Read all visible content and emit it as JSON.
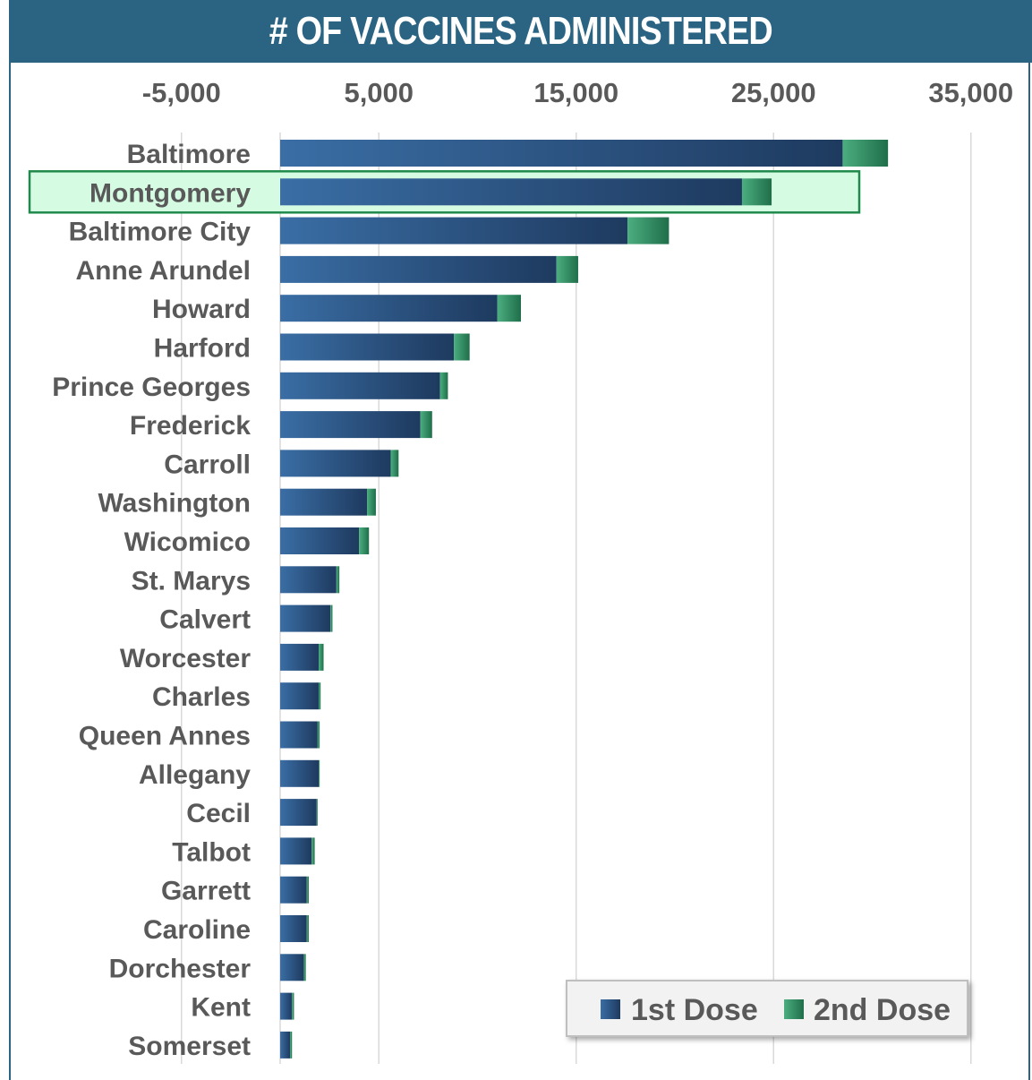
{
  "title": "# OF VACCINES ADMINISTERED",
  "colors": {
    "header": "#2a6482",
    "dose1_light": "#3a6ea5",
    "dose1_dark": "#1e3a5f",
    "dose2_light": "#4cae80",
    "dose2_dark": "#1f6e4a",
    "highlight_fill": "#d6fbe3",
    "highlight_border": "#1f8a4c"
  },
  "chart_data": {
    "type": "bar",
    "orientation": "horizontal",
    "stacked": true,
    "title": "# OF VACCINES ADMINISTERED",
    "xlim": [
      -10000,
      37000
    ],
    "x_ticks": [
      -5000,
      5000,
      15000,
      25000,
      35000
    ],
    "x_tick_labels": [
      "-5,000",
      "5,000",
      "15,000",
      "25,000",
      "35,000"
    ],
    "grid": true,
    "legend_position": "bottom-right",
    "highlighted_category": "Montgomery",
    "categories": [
      "Baltimore",
      "Montgomery",
      "Baltimore City",
      "Anne Arundel",
      "Howard",
      "Harford",
      "Prince Georges",
      "Frederick",
      "Carroll",
      "Washington",
      "Wicomico",
      "St. Marys",
      "Calvert",
      "Worcester",
      "Charles",
      "Queen Annes",
      "Allegany",
      "Cecil",
      "Talbot",
      "Garrett",
      "Caroline",
      "Dorchester",
      "Kent",
      "Somerset"
    ],
    "series": [
      {
        "name": "1st Dose",
        "values": [
          28500,
          23400,
          17600,
          14000,
          11000,
          8800,
          8100,
          7100,
          5600,
          4400,
          4000,
          2850,
          2550,
          1950,
          1950,
          1900,
          1950,
          1850,
          1600,
          1350,
          1350,
          1200,
          600,
          500
        ]
      },
      {
        "name": "2nd Dose",
        "values": [
          2300,
          1500,
          2100,
          1100,
          1200,
          800,
          400,
          600,
          400,
          450,
          500,
          150,
          100,
          250,
          100,
          100,
          50,
          50,
          150,
          100,
          100,
          100,
          100,
          100
        ]
      }
    ]
  }
}
